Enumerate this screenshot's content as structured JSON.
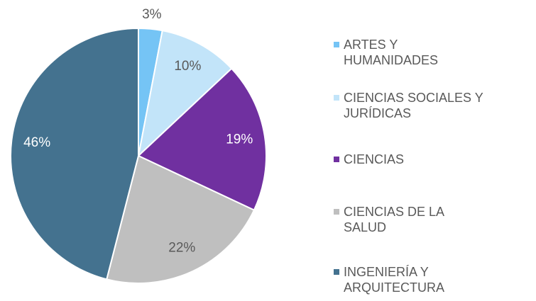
{
  "chart_data": {
    "type": "pie",
    "categories": [
      "ARTES Y\nHUMANIDADES",
      "CIENCIAS SOCIALES Y\nJURÍDICAS",
      "CIENCIAS",
      "CIENCIAS DE LA\nSALUD",
      "INGENIERÍA Y\nARQUITECTURA"
    ],
    "values": [
      3,
      10,
      19,
      22,
      46
    ],
    "value_labels": [
      "3%",
      "10%",
      "19%",
      "22%",
      "46%"
    ],
    "colors": [
      "#75c4f5",
      "#c2e4f9",
      "#7030a0",
      "#bfbfbf",
      "#44728f"
    ],
    "label_colors": [
      "#595959",
      "#595959",
      "#ffffff",
      "#595959",
      "#ffffff"
    ],
    "legend": "right"
  }
}
